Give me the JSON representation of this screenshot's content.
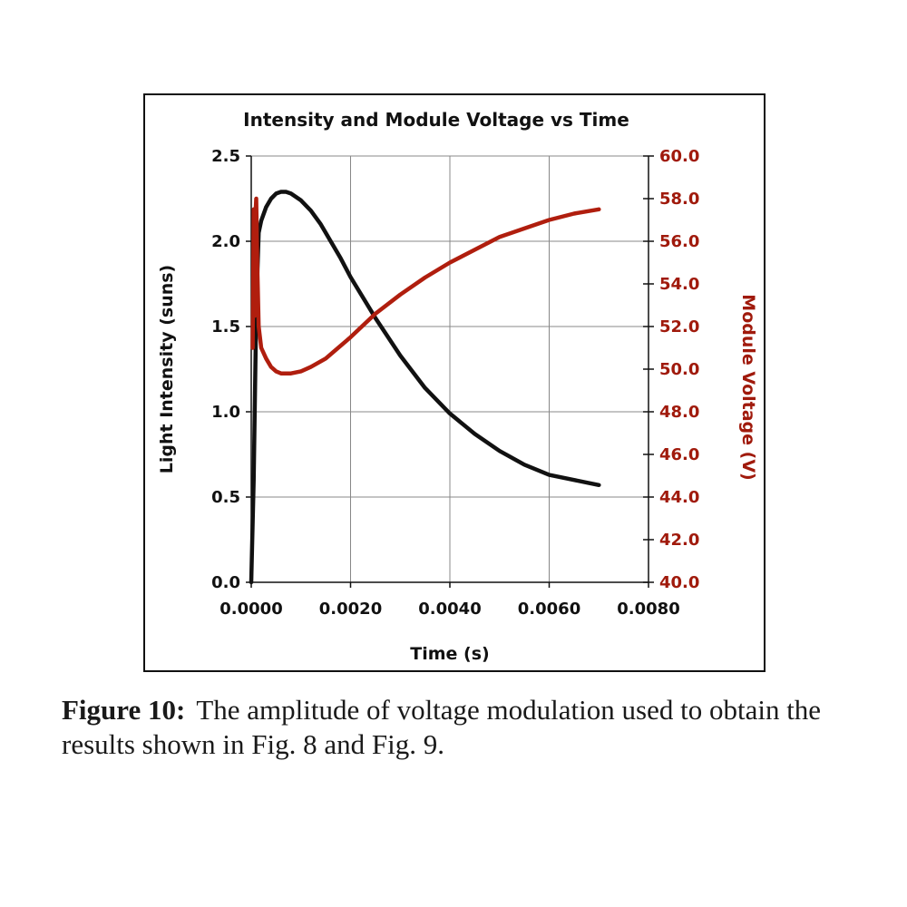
{
  "chart_data": {
    "type": "line",
    "title": "Intensity and Module Voltage vs Time",
    "xlabel": "Time (s)",
    "ylabel_left": "Light Intensity (suns)",
    "ylabel_right": "Module Voltage (V)",
    "xlim": [
      0,
      0.008
    ],
    "ylim_left": [
      0,
      2.5
    ],
    "ylim_right": [
      40,
      60
    ],
    "x_ticks": [
      "0.0000",
      "0.0020",
      "0.0040",
      "0.0060",
      "0.0080"
    ],
    "y_left_ticks": [
      "0.0",
      "0.5",
      "1.0",
      "1.5",
      "2.0",
      "2.5"
    ],
    "y_right_ticks": [
      "40.0",
      "42.0",
      "44.0",
      "46.0",
      "48.0",
      "50.0",
      "52.0",
      "54.0",
      "56.0",
      "58.0",
      "60.0"
    ],
    "grid": true,
    "legend": "none",
    "series": [
      {
        "axis": "left",
        "color": "#111111",
        "x": [
          0,
          5e-05,
          0.0001,
          0.00015,
          0.0002,
          0.0003,
          0.0004,
          0.0005,
          0.0006,
          0.0007,
          0.0008,
          0.001,
          0.0012,
          0.0014,
          0.0016,
          0.0018,
          0.002,
          0.0025,
          0.003,
          0.0035,
          0.004,
          0.0045,
          0.005,
          0.0055,
          0.006,
          0.0065,
          0.007
        ],
        "y": [
          0,
          0.6,
          1.6,
          2.05,
          2.12,
          2.2,
          2.25,
          2.28,
          2.29,
          2.29,
          2.28,
          2.24,
          2.18,
          2.1,
          2.0,
          1.9,
          1.79,
          1.55,
          1.33,
          1.14,
          0.99,
          0.87,
          0.77,
          0.69,
          0.63,
          0.6,
          0.57
        ]
      },
      {
        "axis": "right",
        "color": "#b01e0e",
        "x": [
          3e-05,
          4e-05,
          5e-05,
          6e-05,
          7e-05,
          8e-05,
          0.0001,
          0.00012,
          0.00015,
          0.0002,
          0.0003,
          0.0004,
          0.0005,
          0.0006,
          0.0008,
          0.001,
          0.0012,
          0.0015,
          0.002,
          0.0025,
          0.003,
          0.0035,
          0.004,
          0.0045,
          0.005,
          0.0055,
          0.006,
          0.0065,
          0.007
        ],
        "y": [
          51.0,
          54.5,
          57.5,
          55.0,
          52.5,
          57.0,
          58.0,
          55.0,
          52.0,
          51.0,
          50.5,
          50.1,
          49.9,
          49.8,
          49.8,
          49.9,
          50.1,
          50.5,
          51.5,
          52.6,
          53.5,
          54.3,
          55.0,
          55.6,
          56.2,
          56.6,
          57.0,
          57.3,
          57.5
        ]
      }
    ]
  },
  "caption": {
    "label": "Figure 10:",
    "text": "The amplitude of voltage modulation used to obtain the results shown in Fig. 8 and Fig. 9."
  }
}
